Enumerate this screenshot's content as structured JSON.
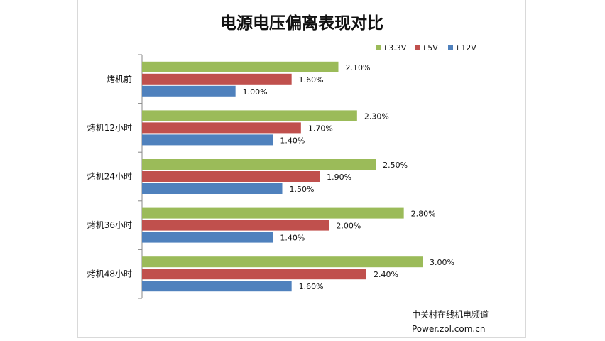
{
  "chart_data": {
    "type": "bar",
    "orientation": "horizontal",
    "title": "电源电压偏离表现对比",
    "categories": [
      "烤机前",
      "烤机12小时",
      "烤机24小时",
      "烤机36小时",
      "烤机48小时"
    ],
    "series": [
      {
        "name": "+3.3V",
        "color": "#9bbb59",
        "values": [
          2.1,
          2.3,
          2.5,
          2.8,
          3.0
        ]
      },
      {
        "name": "+5V",
        "color": "#c0504d",
        "values": [
          1.6,
          1.7,
          1.9,
          2.0,
          2.4
        ]
      },
      {
        "name": "+12V",
        "color": "#4f81bd",
        "values": [
          1.0,
          1.4,
          1.5,
          1.4,
          1.6
        ]
      }
    ],
    "value_labels": [
      [
        "2.10%",
        "2.30%",
        "2.50%",
        "2.80%",
        "3.00%"
      ],
      [
        "1.60%",
        "1.70%",
        "1.90%",
        "2.00%",
        "2.40%"
      ],
      [
        "1.00%",
        "1.40%",
        "1.50%",
        "1.40%",
        "1.60%"
      ]
    ],
    "xlim": [
      0,
      3.0
    ],
    "grid": false,
    "legend_position": "top-right"
  },
  "watermark": {
    "line1": "中关村在线机电频道",
    "line2": "Power.zol.com.cn"
  }
}
